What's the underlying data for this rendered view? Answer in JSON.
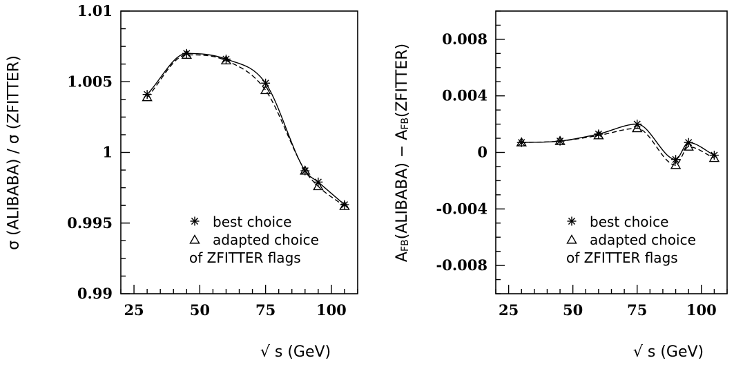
{
  "chart_data": [
    {
      "type": "line",
      "title": "",
      "xlabel": "√ s (GeV)",
      "ylabel": "σ (ALIBABA) / σ (ZFITTER)",
      "xlim": [
        20,
        110
      ],
      "ylim": [
        0.99,
        1.01
      ],
      "x_ticks": [
        25,
        50,
        75,
        100
      ],
      "x_tick_labels": [
        "25",
        "50",
        "75",
        "100"
      ],
      "y_ticks": [
        0.99,
        0.995,
        1.0,
        1.005,
        1.01
      ],
      "y_tick_labels": [
        "0.99",
        "0.995",
        "1",
        "1.005",
        "1.01"
      ],
      "grid": false,
      "legend_position": "bottom-right",
      "legend_note": "of ZFITTER flags",
      "series": [
        {
          "name": "best choice",
          "marker": "asterisk",
          "line": "solid",
          "x": [
            30,
            45,
            60,
            75,
            90,
            95,
            105
          ],
          "y": [
            1.0041,
            1.007,
            1.0066,
            1.0049,
            0.9987,
            0.9979,
            0.9963
          ]
        },
        {
          "name": "adapted choice",
          "marker": "triangle",
          "line": "dashed",
          "x": [
            30,
            45,
            60,
            75,
            90,
            95,
            105
          ],
          "y": [
            1.0039,
            1.0069,
            1.0065,
            1.0044,
            0.9987,
            0.9976,
            0.9962
          ]
        }
      ]
    },
    {
      "type": "line",
      "title": "",
      "xlabel": "√ s (GeV)",
      "ylabel_parts": [
        "A",
        "FB",
        "(ALIBABA) − A",
        "FB",
        "(ZFITTER)"
      ],
      "xlim": [
        20,
        110
      ],
      "ylim": [
        -0.01,
        0.01
      ],
      "x_ticks": [
        25,
        50,
        75,
        100
      ],
      "x_tick_labels": [
        "25",
        "50",
        "75",
        "100"
      ],
      "y_ticks": [
        -0.008,
        -0.004,
        0,
        0.004,
        0.008
      ],
      "y_tick_labels": [
        "-0.008",
        "-0.004",
        "0",
        "0.004",
        "0.008"
      ],
      "grid": false,
      "legend_position": "bottom-right",
      "legend_note": "of ZFITTER flags",
      "series": [
        {
          "name": "best choice",
          "marker": "asterisk",
          "line": "solid",
          "x": [
            30,
            45,
            60,
            75,
            90,
            95,
            105
          ],
          "y": [
            0.0007,
            0.0008,
            0.0013,
            0.002,
            -0.0005,
            0.0007,
            -0.0002
          ]
        },
        {
          "name": "adapted choice",
          "marker": "triangle",
          "line": "dashed",
          "x": [
            30,
            45,
            60,
            75,
            90,
            95,
            105
          ],
          "y": [
            0.0007,
            0.0008,
            0.0012,
            0.0017,
            -0.0009,
            0.0004,
            -0.0004
          ]
        }
      ]
    }
  ]
}
